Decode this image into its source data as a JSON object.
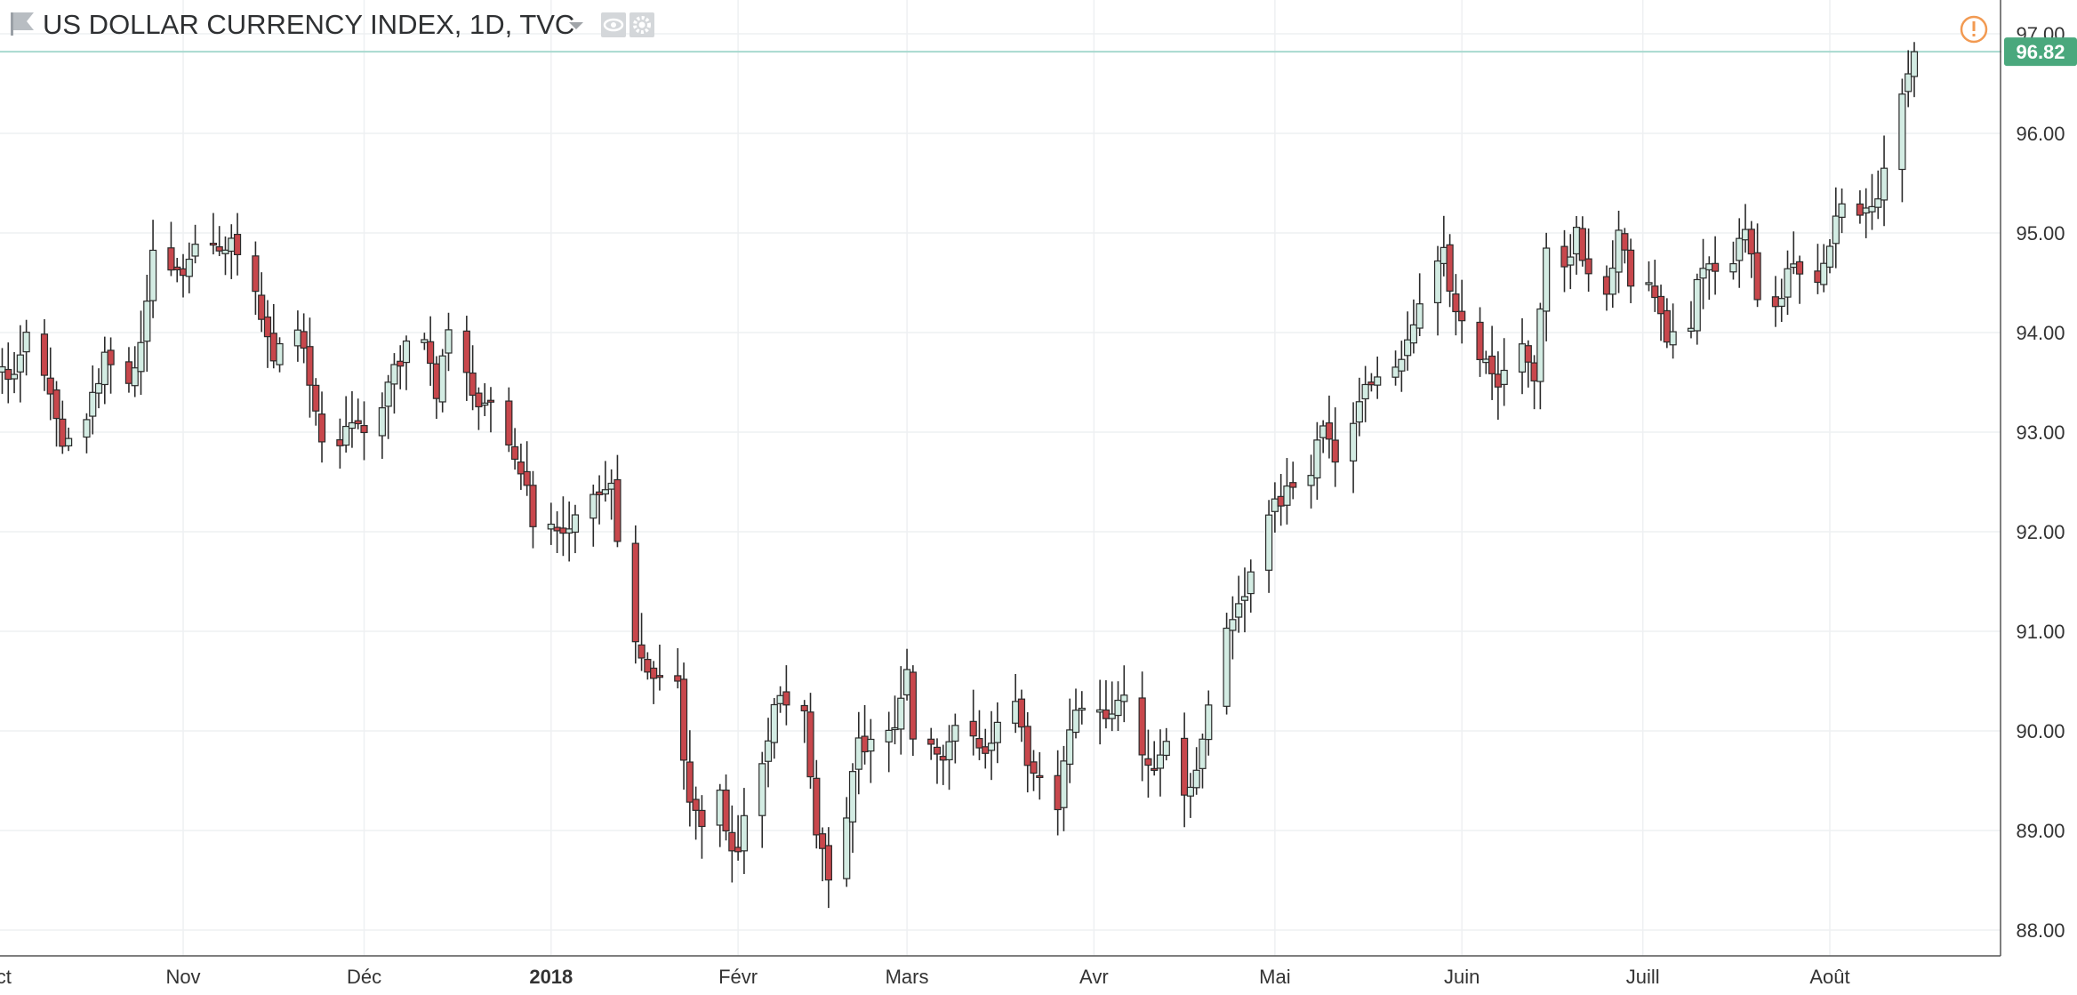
{
  "header": {
    "title": "US DOLLAR CURRENCY INDEX, 1D, TVC",
    "flag_icon": "flag-icon",
    "dropdown_icon": "chevron-down-icon",
    "eye_icon": "eye-icon",
    "settings_icon": "gear-icon",
    "warning_icon": "warning-icon"
  },
  "colors": {
    "up": "#26a69a",
    "up_fill": "#d3ece3",
    "candle_outline": "#2b2b2b",
    "down_fill": "#c8474c",
    "grid": "#eef0f2",
    "price_line": "#a8d9cf",
    "price_badge": "#4aa87d",
    "warning": "#f29a52",
    "axis_text": "#333333"
  },
  "chart_data": {
    "type": "candlestick",
    "title": "US DOLLAR CURRENCY INDEX, 1D, TVC",
    "y_ticks": [
      "97.00",
      "96.00",
      "95.00",
      "94.00",
      "93.00",
      "92.00",
      "91.00",
      "90.00",
      "89.00",
      "88.00"
    ],
    "x_ticks": [
      "Oct",
      "Nov",
      "Déc",
      "2018",
      "Févr",
      "Mars",
      "Avr",
      "Mai",
      "Juin",
      "Juill",
      "Août"
    ],
    "last_price": "96.82",
    "ylim": [
      87.7,
      97.3
    ],
    "grid": true,
    "anchors": [
      [
        "2017-10-02",
        93.7
      ],
      [
        "2017-10-04",
        93.5
      ],
      [
        "2017-10-06",
        93.9
      ],
      [
        "2017-10-10",
        93.4
      ],
      [
        "2017-10-12",
        92.95
      ],
      [
        "2017-10-16",
        93.1
      ],
      [
        "2017-10-19",
        93.7
      ],
      [
        "2017-10-23",
        93.5
      ],
      [
        "2017-10-25",
        93.95
      ],
      [
        "2017-10-27",
        94.8
      ],
      [
        "2017-10-31",
        94.55
      ],
      [
        "2017-11-03",
        94.9
      ],
      [
        "2017-11-07",
        94.85
      ],
      [
        "2017-11-09",
        94.95
      ],
      [
        "2017-11-13",
        94.4
      ],
      [
        "2017-11-15",
        93.85
      ],
      [
        "2017-11-17",
        93.8
      ],
      [
        "2017-11-20",
        94.05
      ],
      [
        "2017-11-24",
        92.8
      ],
      [
        "2017-11-27",
        92.85
      ],
      [
        "2017-11-29",
        93.05
      ],
      [
        "2017-12-01",
        92.9
      ],
      [
        "2017-12-05",
        93.5
      ],
      [
        "2017-12-08",
        93.9
      ],
      [
        "2017-12-11",
        94.0
      ],
      [
        "2017-12-13",
        93.4
      ],
      [
        "2017-12-15",
        93.95
      ],
      [
        "2017-12-18",
        93.5
      ],
      [
        "2017-12-20",
        93.35
      ],
      [
        "2017-12-22",
        93.3
      ],
      [
        "2017-12-27",
        92.6
      ],
      [
        "2017-12-29",
        92.15
      ],
      [
        "2018-01-03",
        91.95
      ],
      [
        "2018-01-08",
        92.3
      ],
      [
        "2018-01-11",
        92.5
      ],
      [
        "2018-01-12",
        91.9
      ],
      [
        "2018-01-15",
        90.95
      ],
      [
        "2018-01-17",
        90.5
      ],
      [
        "2018-01-19",
        90.6
      ],
      [
        "2018-01-22",
        90.4
      ],
      [
        "2018-01-24",
        89.2
      ],
      [
        "2018-01-26",
        89.1
      ],
      [
        "2018-01-29",
        89.3
      ],
      [
        "2018-02-01",
        88.7
      ],
      [
        "2018-02-02",
        89.2
      ],
      [
        "2018-02-05",
        89.6
      ],
      [
        "2018-02-07",
        90.35
      ],
      [
        "2018-02-09",
        90.2
      ],
      [
        "2018-02-12",
        90.1
      ],
      [
        "2018-02-14",
        89.05
      ],
      [
        "2018-02-16",
        88.6
      ],
      [
        "2018-02-19",
        89.05
      ],
      [
        "2018-02-21",
        89.95
      ],
      [
        "2018-02-23",
        89.85
      ],
      [
        "2018-02-27",
        90.1
      ],
      [
        "2018-03-01",
        90.55
      ],
      [
        "2018-03-02",
        90.0
      ],
      [
        "2018-03-05",
        89.8
      ],
      [
        "2018-03-07",
        89.7
      ],
      [
        "2018-03-09",
        90.1
      ],
      [
        "2018-03-12",
        90.0
      ],
      [
        "2018-03-14",
        89.7
      ],
      [
        "2018-03-16",
        90.05
      ],
      [
        "2018-03-19",
        90.2
      ],
      [
        "2018-03-21",
        89.7
      ],
      [
        "2018-03-23",
        89.5
      ],
      [
        "2018-03-26",
        89.1
      ],
      [
        "2018-03-28",
        90.1
      ],
      [
        "2018-03-30",
        90.15
      ],
      [
        "2018-04-03",
        90.1
      ],
      [
        "2018-04-05",
        90.4
      ],
      [
        "2018-04-09",
        89.8
      ],
      [
        "2018-04-11",
        89.55
      ],
      [
        "2018-04-13",
        89.8
      ],
      [
        "2018-04-16",
        89.45
      ],
      [
        "2018-04-18",
        89.6
      ],
      [
        "2018-04-20",
        90.2
      ],
      [
        "2018-04-23",
        90.95
      ],
      [
        "2018-04-25",
        91.3
      ],
      [
        "2018-04-27",
        91.6
      ],
      [
        "2018-05-01",
        92.25
      ],
      [
        "2018-05-04",
        92.55
      ],
      [
        "2018-05-07",
        92.6
      ],
      [
        "2018-05-09",
        93.05
      ],
      [
        "2018-05-11",
        92.6
      ],
      [
        "2018-05-14",
        93.05
      ],
      [
        "2018-05-16",
        93.5
      ],
      [
        "2018-05-18",
        93.65
      ],
      [
        "2018-05-21",
        93.7
      ],
      [
        "2018-05-23",
        93.95
      ],
      [
        "2018-05-25",
        94.25
      ],
      [
        "2018-05-29",
        94.8
      ],
      [
        "2018-05-31",
        94.15
      ],
      [
        "2018-06-01",
        94.1
      ],
      [
        "2018-06-04",
        93.8
      ],
      [
        "2018-06-06",
        93.5
      ],
      [
        "2018-06-08",
        93.55
      ],
      [
        "2018-06-11",
        93.8
      ],
      [
        "2018-06-13",
        93.5
      ],
      [
        "2018-06-15",
        94.8
      ],
      [
        "2018-06-18",
        94.7
      ],
      [
        "2018-06-20",
        95.0
      ],
      [
        "2018-06-22",
        94.6
      ],
      [
        "2018-06-25",
        94.4
      ],
      [
        "2018-06-27",
        95.1
      ],
      [
        "2018-06-29",
        94.55
      ],
      [
        "2018-07-03",
        94.35
      ],
      [
        "2018-07-05",
        94.0
      ],
      [
        "2018-07-09",
        94.15
      ],
      [
        "2018-07-11",
        94.7
      ],
      [
        "2018-07-13",
        94.6
      ],
      [
        "2018-07-16",
        94.6
      ],
      [
        "2018-07-18",
        95.1
      ],
      [
        "2018-07-20",
        94.4
      ],
      [
        "2018-07-23",
        94.25
      ],
      [
        "2018-07-25",
        94.6
      ],
      [
        "2018-07-27",
        94.65
      ],
      [
        "2018-07-31",
        94.6
      ],
      [
        "2018-08-02",
        95.2
      ],
      [
        "2018-08-06",
        95.2
      ],
      [
        "2018-08-08",
        95.2
      ],
      [
        "2018-08-10",
        95.7
      ],
      [
        "2018-08-13",
        96.3
      ],
      [
        "2018-08-15",
        96.82
      ]
    ]
  }
}
